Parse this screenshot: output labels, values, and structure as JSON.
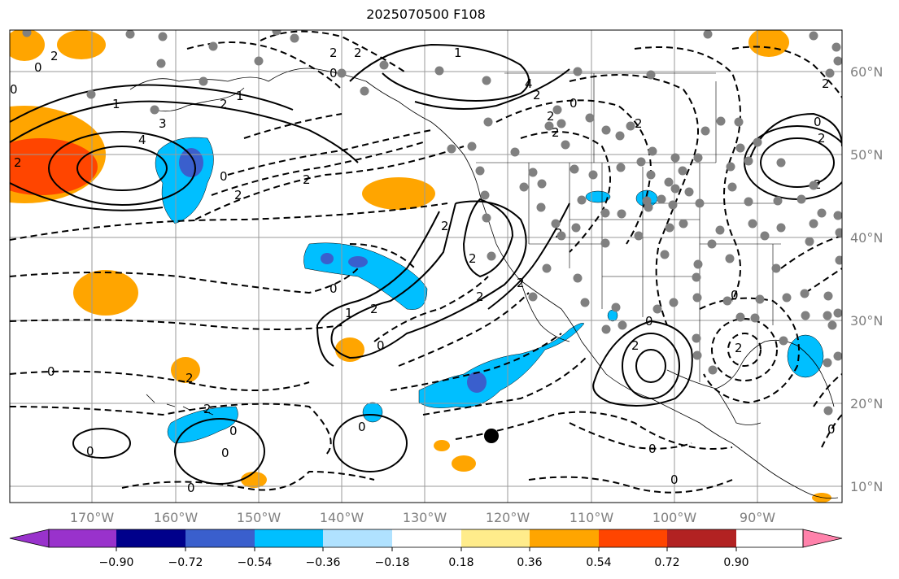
{
  "title": "2025070500 F108",
  "lon_labels": [
    "170°W",
    "160°W",
    "150°W",
    "140°W",
    "130°W",
    "120°W",
    "110°W",
    "100°W",
    "90°W"
  ],
  "lat_labels": [
    "60°N",
    "50°N",
    "40°N",
    "30°N",
    "20°N",
    "10°N"
  ],
  "colorbar": {
    "ticks": [
      "−0.90",
      "−0.72",
      "−0.54",
      "−0.36",
      "−0.18",
      "0.18",
      "0.36",
      "0.54",
      "0.72",
      "0.90"
    ],
    "colors": [
      "#9932cc",
      "#00008b",
      "#3a5fcd",
      "#00bfff",
      "#b0e2ff",
      "#ffffff",
      "#ffec8b",
      "#ffa500",
      "#ff4500",
      "#b22222",
      "#ff82ab"
    ]
  },
  "contour_labels": [
    "0",
    "2",
    "4",
    "-2",
    "1",
    "3"
  ],
  "colors": {
    "grid": "#9a9a9a",
    "tick_label": "#7f7f7f",
    "station_dot": "#808080"
  }
}
